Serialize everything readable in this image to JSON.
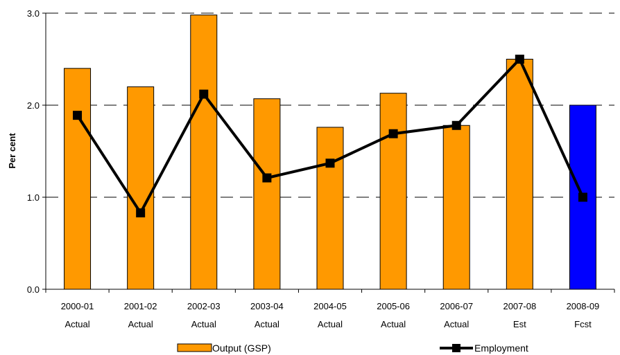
{
  "chart_data": {
    "type": "bar",
    "title": "",
    "xlabel": "",
    "ylabel": "Per cent",
    "ylim": [
      0,
      3
    ],
    "yticks": [
      "0.0",
      "1.0",
      "2.0",
      "3.0"
    ],
    "categories": [
      [
        "2000-01",
        "Actual"
      ],
      [
        "2001-02",
        "Actual"
      ],
      [
        "2002-03",
        "Actual"
      ],
      [
        "2003-04",
        "Actual"
      ],
      [
        "2004-05",
        "Actual"
      ],
      [
        "2005-06",
        "Actual"
      ],
      [
        "2006-07",
        "Actual"
      ],
      [
        "2007-08",
        "Est"
      ],
      [
        "2008-09",
        "Fcst"
      ]
    ],
    "series": [
      {
        "name": "Output (GSP)",
        "type": "bar",
        "values": [
          2.4,
          2.2,
          2.98,
          2.07,
          1.76,
          2.13,
          1.78,
          2.5,
          2.0
        ],
        "color": "#FF9900",
        "highlight_color": "#0000FF",
        "highlight_index": 8
      },
      {
        "name": "Employment",
        "type": "line",
        "values": [
          1.89,
          0.83,
          2.12,
          1.21,
          1.37,
          1.69,
          1.78,
          2.5,
          1.0
        ],
        "color": "#000000"
      }
    ],
    "grid": "dashed horizontal",
    "legend_position": "bottom"
  }
}
